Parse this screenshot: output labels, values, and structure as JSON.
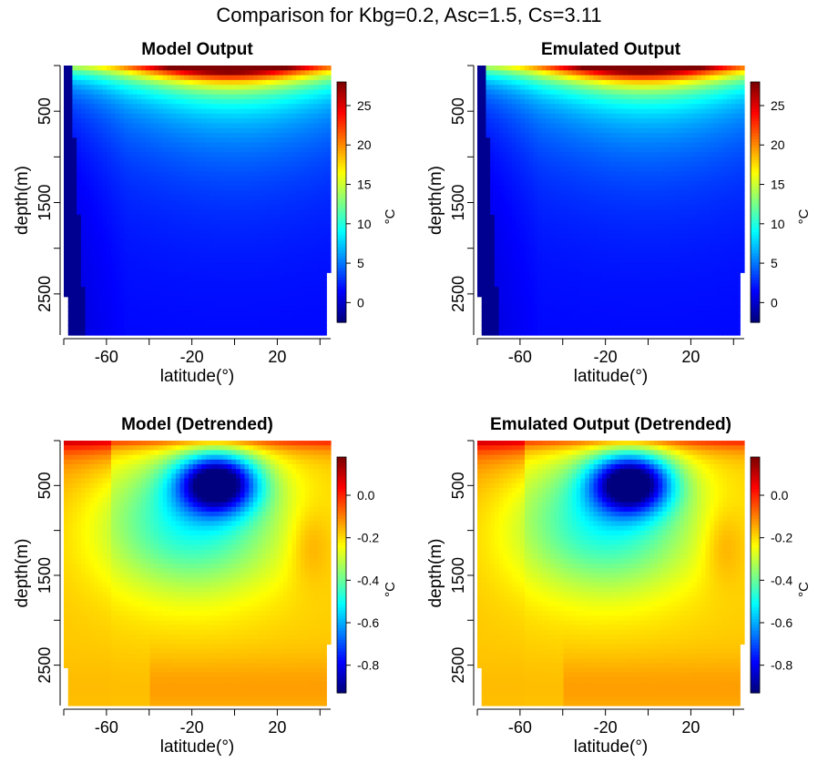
{
  "title": "Comparison for Kbg=0.2, Asc=1.5, Cs=3.11",
  "colormap": [
    "#00007f",
    "#0000ff",
    "#0080ff",
    "#00ffff",
    "#80ff80",
    "#ffff00",
    "#ff8000",
    "#ff0000",
    "#7f0000"
  ],
  "chart_data": [
    {
      "type": "heatmap",
      "title": "Model Output",
      "xlabel": "latitude(°)",
      "ylabel": "depth(m)",
      "xticks": [
        "-60",
        "-20",
        "20"
      ],
      "xtick_values": [
        -60,
        -20,
        20
      ],
      "yticks": [
        "500",
        "1500",
        "2500"
      ],
      "ytick_values": [
        500,
        1500,
        2500
      ],
      "xlim": [
        -80,
        45
      ],
      "ylim": [
        2950,
        0
      ],
      "colorbar_label": "°C",
      "colorbar_ticks": [
        "0",
        "5",
        "10",
        "15",
        "20",
        "25"
      ],
      "colorbar_tick_values": [
        0,
        5,
        10,
        15,
        20,
        25
      ],
      "zlim": [
        -2.5,
        28
      ],
      "field": "temperature"
    },
    {
      "type": "heatmap",
      "title": "Emulated Output",
      "xlabel": "latitude(°)",
      "ylabel": "depth(m)",
      "xticks": [
        "-60",
        "-20",
        "20"
      ],
      "xtick_values": [
        -60,
        -20,
        20
      ],
      "yticks": [
        "500",
        "1500",
        "2500"
      ],
      "ytick_values": [
        500,
        1500,
        2500
      ],
      "xlim": [
        -80,
        45
      ],
      "ylim": [
        2950,
        0
      ],
      "colorbar_label": "°C",
      "colorbar_ticks": [
        "0",
        "5",
        "10",
        "15",
        "20",
        "25"
      ],
      "colorbar_tick_values": [
        0,
        5,
        10,
        15,
        20,
        25
      ],
      "zlim": [
        -2.5,
        28
      ],
      "field": "temperature"
    },
    {
      "type": "heatmap",
      "title": "Model (Detrended)",
      "xlabel": "latitude(°)",
      "ylabel": "depth(m)",
      "xticks": [
        "-60",
        "-20",
        "20"
      ],
      "xtick_values": [
        -60,
        -20,
        20
      ],
      "yticks": [
        "500",
        "1500",
        "2500"
      ],
      "ytick_values": [
        500,
        1500,
        2500
      ],
      "xlim": [
        -80,
        45
      ],
      "ylim": [
        2950,
        0
      ],
      "colorbar_label": "°C",
      "colorbar_ticks": [
        "0.0",
        "-0.2",
        "-0.4",
        "-0.6",
        "-0.8"
      ],
      "colorbar_tick_values": [
        0.0,
        -0.2,
        -0.4,
        -0.6,
        -0.8
      ],
      "zlim": [
        -0.93,
        0.18
      ],
      "field": "detrended"
    },
    {
      "type": "heatmap",
      "title": "Emulated Output (Detrended)",
      "xlabel": "latitude(°)",
      "ylabel": "depth(m)",
      "xticks": [
        "-60",
        "-20",
        "20"
      ],
      "xtick_values": [
        -60,
        -20,
        20
      ],
      "yticks": [
        "500",
        "1500",
        "2500"
      ],
      "ytick_values": [
        500,
        1500,
        2500
      ],
      "xlim": [
        -80,
        45
      ],
      "ylim": [
        2950,
        0
      ],
      "colorbar_label": "°C",
      "colorbar_ticks": [
        "0.0",
        "-0.2",
        "-0.4",
        "-0.6",
        "-0.8"
      ],
      "colorbar_tick_values": [
        0.0,
        -0.2,
        -0.4,
        -0.6,
        -0.8
      ],
      "zlim": [
        -0.93,
        0.18
      ],
      "field": "detrended"
    }
  ]
}
